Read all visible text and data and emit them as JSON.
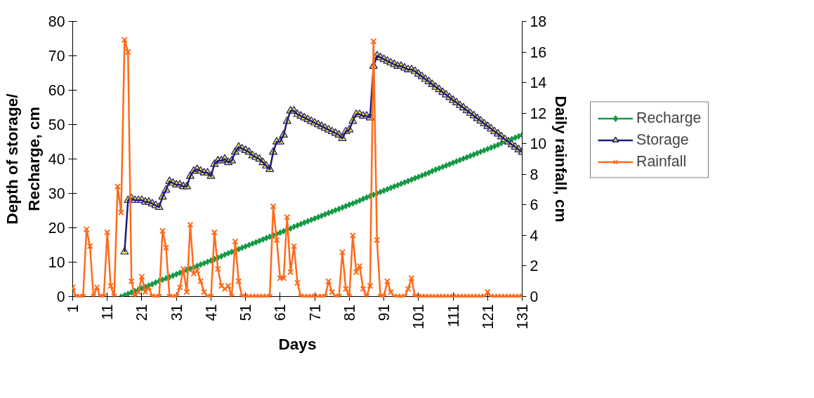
{
  "chart_data": {
    "type": "line",
    "xlabel": "Days",
    "ylabel": "Depth of storage/\nRecharge, cm",
    "y2label": "Daily rainfall, cm",
    "x": [
      1,
      2,
      3,
      4,
      5,
      6,
      7,
      8,
      9,
      10,
      11,
      12,
      13,
      14,
      15,
      16,
      17,
      18,
      19,
      20,
      21,
      22,
      23,
      24,
      25,
      26,
      27,
      28,
      29,
      30,
      31,
      32,
      33,
      34,
      35,
      36,
      37,
      38,
      39,
      40,
      41,
      42,
      43,
      44,
      45,
      46,
      47,
      48,
      49,
      50,
      51,
      52,
      53,
      54,
      55,
      56,
      57,
      58,
      59,
      60,
      61,
      62,
      63,
      64,
      65,
      66,
      67,
      68,
      69,
      70,
      71,
      72,
      73,
      74,
      75,
      76,
      77,
      78,
      79,
      80,
      81,
      82,
      83,
      84,
      85,
      86,
      87,
      88,
      89,
      90,
      91,
      92,
      93,
      94,
      95,
      96,
      97,
      98,
      99,
      100,
      101,
      102,
      103,
      104,
      105,
      106,
      107,
      108,
      109,
      110,
      111,
      112,
      113,
      114,
      115,
      116,
      117,
      118,
      119,
      120,
      121,
      122,
      123,
      124,
      125,
      126,
      127,
      128,
      129,
      130,
      131
    ],
    "series": [
      {
        "name": "Recharge",
        "color": "#159a45",
        "marker": "diamond",
        "values": [
          null,
          null,
          null,
          null,
          null,
          null,
          null,
          null,
          null,
          null,
          null,
          null,
          null,
          null,
          0,
          0.4,
          0.8,
          1.2,
          1.6,
          2.0,
          2.4,
          2.8,
          3.2,
          3.6,
          4.1,
          4.5,
          4.9,
          5.3,
          5.7,
          6.1,
          6.5,
          6.9,
          7.3,
          7.7,
          8.1,
          8.5,
          8.9,
          9.3,
          9.7,
          10.1,
          10.5,
          10.9,
          11.3,
          11.7,
          12.2,
          12.6,
          13.0,
          13.4,
          13.8,
          14.2,
          14.6,
          15.0,
          15.4,
          15.8,
          16.2,
          16.6,
          17.0,
          17.4,
          17.8,
          18.2,
          18.6,
          19.0,
          19.4,
          19.8,
          20.3,
          20.7,
          21.1,
          21.5,
          21.9,
          22.3,
          22.7,
          23.1,
          23.5,
          23.9,
          24.3,
          24.7,
          25.1,
          25.5,
          25.9,
          26.3,
          26.7,
          27.1,
          27.5,
          27.9,
          28.4,
          28.8,
          29.2,
          29.6,
          30.0,
          30.4,
          30.8,
          31.2,
          31.6,
          32.0,
          32.4,
          32.8,
          33.2,
          33.6,
          34.0,
          34.4,
          34.8,
          35.2,
          35.6,
          36.0,
          36.5,
          36.9,
          37.3,
          37.7,
          38.1,
          38.5,
          38.9,
          39.3,
          39.7,
          40.1,
          40.5,
          40.9,
          41.3,
          41.7,
          42.1,
          42.5,
          42.9,
          43.3,
          43.7,
          44.1,
          44.6,
          45.0,
          45.4,
          45.8,
          46.2,
          46.6,
          47.0
        ]
      },
      {
        "name": "Storage",
        "color": "#1b1b7d",
        "marker": "triangle",
        "values": [
          null,
          null,
          null,
          null,
          null,
          null,
          null,
          null,
          null,
          null,
          null,
          null,
          null,
          null,
          null,
          13,
          28,
          28.5,
          28,
          28,
          28,
          27.5,
          27.5,
          27,
          26.5,
          26,
          29,
          31,
          33.5,
          33,
          32.5,
          32.5,
          32,
          32,
          35,
          36.5,
          37,
          36.5,
          36,
          36,
          35,
          38.5,
          39.5,
          39.5,
          40,
          39,
          39.5,
          42,
          43.5,
          43,
          42.5,
          42,
          41,
          40.5,
          40,
          39,
          38,
          37,
          42,
          45,
          45,
          47,
          51,
          54,
          54,
          53,
          52.5,
          52,
          51.5,
          51,
          50.5,
          50,
          49.5,
          49,
          48.5,
          48,
          47.5,
          47,
          46,
          48,
          48.5,
          51,
          53,
          53,
          52.5,
          52.5,
          52,
          67,
          70,
          69.5,
          69,
          68.5,
          68,
          67.5,
          67,
          67,
          66.5,
          66,
          66,
          65.5,
          64.7,
          64.0,
          63.2,
          62.5,
          61.7,
          60.9,
          60.2,
          59.4,
          58.7,
          57.9,
          57.1,
          56.4,
          55.6,
          54.9,
          54.1,
          53.3,
          52.6,
          51.8,
          51.1,
          50.3,
          49.5,
          48.8,
          48.0,
          47.3,
          46.5,
          45.7,
          45.0,
          44.2,
          43.5,
          42.7,
          42.0
        ]
      },
      {
        "name": "Rainfall",
        "color": "#ff6a1a",
        "marker": "cross",
        "axis": "y2",
        "values": [
          0.6,
          0,
          0,
          0,
          4.4,
          3.3,
          0,
          0.6,
          0,
          0,
          4.2,
          0.7,
          0,
          7.2,
          5.5,
          16.8,
          16.0,
          1.0,
          0,
          0.3,
          1.3,
          0.3,
          0.6,
          0,
          0,
          0,
          4.3,
          3.2,
          0,
          0,
          0,
          0.6,
          1.8,
          0.3,
          4.7,
          1.5,
          1.7,
          1.0,
          0.3,
          0,
          0,
          4.2,
          1.8,
          0.7,
          0.5,
          0.7,
          0,
          3.6,
          1.0,
          0,
          0,
          0,
          0,
          0,
          0,
          0,
          0,
          0,
          5.9,
          3.7,
          1.2,
          1.2,
          5.2,
          1.6,
          3.3,
          0.9,
          0,
          0,
          0,
          0,
          0,
          0,
          0,
          0,
          1.0,
          0.3,
          0,
          0,
          2.9,
          0.5,
          0,
          4.0,
          1.6,
          2.0,
          0.5,
          0,
          0.7,
          16.7,
          3.7,
          0,
          0,
          1.0,
          0.3,
          0,
          0,
          0,
          0,
          0.5,
          1.2,
          0,
          0,
          0,
          0,
          0,
          0,
          0,
          0,
          0,
          0,
          0,
          0,
          0,
          0,
          0,
          0,
          0,
          0,
          0,
          0,
          0,
          0.3,
          0,
          0,
          0,
          0,
          0,
          0,
          0,
          0,
          0,
          0
        ]
      }
    ],
    "xlim": [
      1,
      131
    ],
    "xticks": [
      1,
      11,
      21,
      31,
      41,
      51,
      61,
      71,
      81,
      91,
      101,
      111,
      121,
      131
    ],
    "ylim": [
      0,
      80
    ],
    "yticks": [
      0,
      10,
      20,
      30,
      40,
      50,
      60,
      70,
      80
    ],
    "y2lim": [
      0,
      18
    ],
    "y2ticks": [
      0,
      2,
      4,
      6,
      8,
      10,
      12,
      14,
      16,
      18
    ],
    "grid": false,
    "legend": "right",
    "line_style": "solid"
  }
}
